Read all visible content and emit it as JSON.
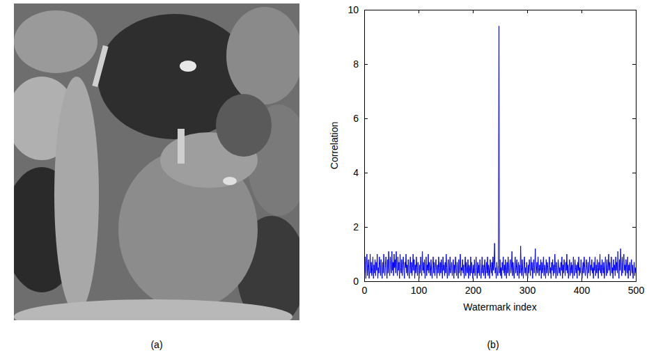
{
  "image": {
    "label": "(a)"
  },
  "chart_data": {
    "type": "line",
    "label": "(b)",
    "x_label": "Watermark index",
    "y_label": "Correlation",
    "xlim": [
      0,
      500
    ],
    "xticks": [
      0,
      100,
      200,
      300,
      400,
      500
    ],
    "ylim": [
      0,
      10
    ],
    "yticks": [
      0,
      2,
      4,
      6,
      8,
      10
    ],
    "grid": false,
    "x": [
      1,
      2,
      3,
      4,
      5,
      6,
      7,
      8,
      9,
      10,
      11,
      12,
      13,
      14,
      15,
      16,
      17,
      18,
      19,
      20,
      21,
      22,
      23,
      24,
      25,
      26,
      27,
      28,
      29,
      30,
      31,
      32,
      33,
      34,
      35,
      36,
      37,
      38,
      39,
      40,
      41,
      42,
      43,
      44,
      45,
      46,
      47,
      48,
      49,
      50,
      51,
      52,
      53,
      54,
      55,
      56,
      57,
      58,
      59,
      60,
      61,
      62,
      63,
      64,
      65,
      66,
      67,
      68,
      69,
      70,
      71,
      72,
      73,
      74,
      75,
      76,
      77,
      78,
      79,
      80,
      81,
      82,
      83,
      84,
      85,
      86,
      87,
      88,
      89,
      90,
      91,
      92,
      93,
      94,
      95,
      96,
      97,
      98,
      99,
      100,
      101,
      102,
      103,
      104,
      105,
      106,
      107,
      108,
      109,
      110,
      111,
      112,
      113,
      114,
      115,
      116,
      117,
      118,
      119,
      120,
      121,
      122,
      123,
      124,
      125,
      126,
      127,
      128,
      129,
      130,
      131,
      132,
      133,
      134,
      135,
      136,
      137,
      138,
      139,
      140,
      141,
      142,
      143,
      144,
      145,
      146,
      147,
      148,
      149,
      150,
      151,
      152,
      153,
      154,
      155,
      156,
      157,
      158,
      159,
      160,
      161,
      162,
      163,
      164,
      165,
      166,
      167,
      168,
      169,
      170,
      171,
      172,
      173,
      174,
      175,
      176,
      177,
      178,
      179,
      180,
      181,
      182,
      183,
      184,
      185,
      186,
      187,
      188,
      189,
      190,
      191,
      192,
      193,
      194,
      195,
      196,
      197,
      198,
      199,
      200,
      201,
      202,
      203,
      204,
      205,
      206,
      207,
      208,
      209,
      210,
      211,
      212,
      213,
      214,
      215,
      216,
      217,
      218,
      219,
      220,
      221,
      222,
      223,
      224,
      225,
      226,
      227,
      228,
      229,
      230,
      231,
      232,
      233,
      234,
      235,
      236,
      237,
      238,
      239,
      240,
      241,
      242,
      243,
      244,
      245,
      246,
      247,
      248,
      249,
      250,
      251,
      252,
      253,
      254,
      255,
      256,
      257,
      258,
      259,
      260,
      261,
      262,
      263,
      264,
      265,
      266,
      267,
      268,
      269,
      270,
      271,
      272,
      273,
      274,
      275,
      276,
      277,
      278,
      279,
      280,
      281,
      282,
      283,
      284,
      285,
      286,
      287,
      288,
      289,
      290,
      291,
      292,
      293,
      294,
      295,
      296,
      297,
      298,
      299,
      300,
      301,
      302,
      303,
      304,
      305,
      306,
      307,
      308,
      309,
      310,
      311,
      312,
      313,
      314,
      315,
      316,
      317,
      318,
      319,
      320,
      321,
      322,
      323,
      324,
      325,
      326,
      327,
      328,
      329,
      330,
      331,
      332,
      333,
      334,
      335,
      336,
      337,
      338,
      339,
      340,
      341,
      342,
      343,
      344,
      345,
      346,
      347,
      348,
      349,
      350,
      351,
      352,
      353,
      354,
      355,
      356,
      357,
      358,
      359,
      360,
      361,
      362,
      363,
      364,
      365,
      366,
      367,
      368,
      369,
      370,
      371,
      372,
      373,
      374,
      375,
      376,
      377,
      378,
      379,
      380,
      381,
      382,
      383,
      384,
      385,
      386,
      387,
      388,
      389,
      390,
      391,
      392,
      393,
      394,
      395,
      396,
      397,
      398,
      399,
      400,
      401,
      402,
      403,
      404,
      405,
      406,
      407,
      408,
      409,
      410,
      411,
      412,
      413,
      414,
      415,
      416,
      417,
      418,
      419,
      420,
      421,
      422,
      423,
      424,
      425,
      426,
      427,
      428,
      429,
      430,
      431,
      432,
      433,
      434,
      435,
      436,
      437,
      438,
      439,
      440,
      441,
      442,
      443,
      444,
      445,
      446,
      447,
      448,
      449,
      450,
      451,
      452,
      453,
      454,
      455,
      456,
      457,
      458,
      459,
      460,
      461,
      462,
      463,
      464,
      465,
      466,
      467,
      468,
      469,
      470,
      471,
      472,
      473,
      474,
      475,
      476,
      477,
      478,
      479,
      480,
      481,
      482,
      483,
      484,
      485,
      486,
      487,
      488,
      489,
      490,
      491,
      492,
      493,
      494,
      495,
      496,
      497,
      498,
      499,
      500
    ],
    "series": [
      {
        "color": "#0000ff",
        "values": [
          0.3,
          0.9,
          0.1,
          0.6,
          1.0,
          0.2,
          0.5,
          0.8,
          0.1,
          0.4,
          1.0,
          0.3,
          0.7,
          0.2,
          0.5,
          0.9,
          0.1,
          0.6,
          0.3,
          0.8,
          0.2,
          0.7,
          0.4,
          1.0,
          0.1,
          0.5,
          0.3,
          0.9,
          0.6,
          0.2,
          0.8,
          0.4,
          0.1,
          0.7,
          0.3,
          1.0,
          0.5,
          0.2,
          0.6,
          0.9,
          0.4,
          0.1,
          0.8,
          0.3,
          1.1,
          0.5,
          0.2,
          0.9,
          0.6,
          0.3,
          1.1,
          0.4,
          0.7,
          0.2,
          1.0,
          0.5,
          0.8,
          0.3,
          1.1,
          0.6,
          0.2,
          0.9,
          0.4,
          0.7,
          0.1,
          1.0,
          0.5,
          0.3,
          0.8,
          0.2,
          0.6,
          0.9,
          0.4,
          0.1,
          0.7,
          0.5,
          1.0,
          0.3,
          0.6,
          0.2,
          0.8,
          0.4,
          0.1,
          0.6,
          0.9,
          0.3,
          0.7,
          0.2,
          0.5,
          1.0,
          0.4,
          0.8,
          0.1,
          0.6,
          0.3,
          0.9,
          0.5,
          0.2,
          0.7,
          0.4,
          0.1,
          0.6,
          0.3,
          0.9,
          0.5,
          0.2,
          1.1,
          0.4,
          0.7,
          0.3,
          0.8,
          0.1,
          0.5,
          0.9,
          0.2,
          0.6,
          0.4,
          1.0,
          0.3,
          0.7,
          0.5,
          0.2,
          0.8,
          0.4,
          0.1,
          0.6,
          0.9,
          0.3,
          0.7,
          0.2,
          0.5,
          0.8,
          0.4,
          0.1,
          0.6,
          0.3,
          0.9,
          0.5,
          0.2,
          0.7,
          0.3,
          0.8,
          0.5,
          0.1,
          0.9,
          0.4,
          0.6,
          0.2,
          0.7,
          0.3,
          1.0,
          0.5,
          0.1,
          0.6,
          0.8,
          0.2,
          0.4,
          0.9,
          0.3,
          0.5,
          0.7,
          0.2,
          0.4,
          0.8,
          0.1,
          0.6,
          0.3,
          0.9,
          0.5,
          0.2,
          0.7,
          0.4,
          0.1,
          0.8,
          0.3,
          0.6,
          1.0,
          0.2,
          0.5,
          0.4,
          0.8,
          0.3,
          0.6,
          0.1,
          0.5,
          0.9,
          0.2,
          0.7,
          0.4,
          0.3,
          0.8,
          0.1,
          0.6,
          0.5,
          0.2,
          0.9,
          0.3,
          0.7,
          0.4,
          0.1,
          0.6,
          0.3,
          0.8,
          0.2,
          0.5,
          0.9,
          0.4,
          0.1,
          0.7,
          0.3,
          0.6,
          0.2,
          0.8,
          0.5,
          0.1,
          0.4,
          0.9,
          0.3,
          0.6,
          0.2,
          0.5,
          0.8,
          0.1,
          0.4,
          0.7,
          0.3,
          0.9,
          0.2,
          0.6,
          0.4,
          0.1,
          0.8,
          0.5,
          0.3,
          0.7,
          0.2,
          0.9,
          0.4,
          0.6,
          1.4,
          0.3,
          0.5,
          0.1,
          0.7,
          0.4,
          0.2,
          0.6,
          9.4,
          0.3,
          0.8,
          0.2,
          0.5,
          0.1,
          0.7,
          0.4,
          0.9,
          0.3,
          0.6,
          0.2,
          0.8,
          0.4,
          0.1,
          0.7,
          0.3,
          0.9,
          0.5,
          0.2,
          0.6,
          0.8,
          0.3,
          0.5,
          1.1,
          0.2,
          0.7,
          0.4,
          0.1,
          0.6,
          0.9,
          0.3,
          0.5,
          0.8,
          0.2,
          0.4,
          0.7,
          0.1,
          0.6,
          0.3,
          1.3,
          0.5,
          0.2,
          0.8,
          0.4,
          0.1,
          0.6,
          0.9,
          0.3,
          0.5,
          0.2,
          0.7,
          0.4,
          0.1,
          0.6,
          0.3,
          0.8,
          0.5,
          0.2,
          0.9,
          0.4,
          0.7,
          0.1,
          0.5,
          0.8,
          0.3,
          0.6,
          1.2,
          0.2,
          0.4,
          0.7,
          0.3,
          0.9,
          0.5,
          0.2,
          0.6,
          0.4,
          0.8,
          0.1,
          0.7,
          0.3,
          0.5,
          0.9,
          0.2,
          0.6,
          0.4,
          0.1,
          0.8,
          0.3,
          0.7,
          0.5,
          0.2,
          0.6,
          0.9,
          0.3,
          0.5,
          0.1,
          0.7,
          0.4,
          0.8,
          0.2,
          0.6,
          0.3,
          1.0,
          0.5,
          0.1,
          0.7,
          0.4,
          0.2,
          0.8,
          0.6,
          0.3,
          0.5,
          0.2,
          0.7,
          0.4,
          0.9,
          0.1,
          0.6,
          0.3,
          0.8,
          0.5,
          0.2,
          0.7,
          0.4,
          1.0,
          0.3,
          0.6,
          0.1,
          0.5,
          0.8,
          0.2,
          0.4,
          0.7,
          0.3,
          0.6,
          0.1,
          0.9,
          0.4,
          0.2,
          0.8,
          0.5,
          0.3,
          0.6,
          0.1,
          0.7,
          0.4,
          0.9,
          0.2,
          0.5,
          0.3,
          0.8,
          0.6,
          0.1,
          0.4,
          0.7,
          0.3,
          0.9,
          0.5,
          0.2,
          0.6,
          0.8,
          0.4,
          0.1,
          0.7,
          0.3,
          0.5,
          0.9,
          0.2,
          0.6,
          0.4,
          0.8,
          0.3,
          0.5,
          0.1,
          0.7,
          0.4,
          0.9,
          0.2,
          0.6,
          0.3,
          0.8,
          0.5,
          0.1,
          0.7,
          0.4,
          1.0,
          0.3,
          0.6,
          0.2,
          0.8,
          0.5,
          0.3,
          0.7,
          0.1,
          0.4,
          0.9,
          0.6,
          0.2,
          0.8,
          0.3,
          0.5,
          1.0,
          0.4,
          0.7,
          0.2,
          0.6,
          0.9,
          0.3,
          0.5,
          0.1,
          0.8,
          0.4,
          0.6,
          0.2,
          0.9,
          0.4,
          0.7,
          0.3,
          1.1,
          0.5,
          0.1,
          0.8,
          0.4,
          1.2,
          0.6,
          0.2,
          0.9,
          0.3,
          0.7,
          1.0,
          0.4,
          0.6,
          0.2,
          0.8,
          0.5,
          0.3,
          0.9,
          0.1,
          0.6,
          0.4,
          0.7,
          0.2,
          0.5,
          0.8,
          0.3,
          0.6,
          0.1,
          0.4,
          0.7,
          0.2,
          0.5,
          0.3
        ]
      }
    ]
  }
}
